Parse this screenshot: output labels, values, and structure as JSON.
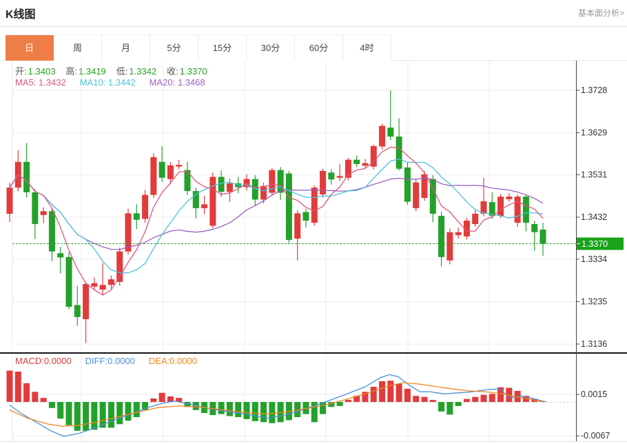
{
  "header": {
    "title": "K线图",
    "link": "基本面分析>"
  },
  "tabs": {
    "items": [
      "日",
      "周",
      "月",
      "5分",
      "15分",
      "30分",
      "60分",
      "4时"
    ],
    "active": 0
  },
  "quote": {
    "items": [
      {
        "key": "open",
        "label": "开:",
        "value": "1.3403"
      },
      {
        "key": "high",
        "label": "高:",
        "value": "1.3419"
      },
      {
        "key": "low",
        "label": "低:",
        "value": "1.3342"
      },
      {
        "key": "close",
        "label": "收:",
        "value": "1.3370"
      }
    ]
  },
  "ma": {
    "items": [
      {
        "key": "ma5",
        "label": "MA5:",
        "value": "1.3432",
        "color": "#e0557f"
      },
      {
        "key": "ma10",
        "label": "MA10:",
        "value": "1.3442",
        "color": "#4cc3dc"
      },
      {
        "key": "ma20",
        "label": "MA20:",
        "value": "1.3468",
        "color": "#9c5fc0"
      }
    ]
  },
  "macd_legend": {
    "items": [
      {
        "key": "macd",
        "label": "MACD:",
        "value": "0.0000",
        "color": "#e23b3b"
      },
      {
        "key": "diff",
        "label": "DIFF:",
        "value": "0.0000",
        "color": "#4a90d9"
      },
      {
        "key": "dea",
        "label": "DEA:",
        "value": "0.0000",
        "color": "#f0871e"
      }
    ]
  },
  "colors": {
    "up": "#e23b3b",
    "down": "#23a12a",
    "ma5": "#e0557f",
    "ma10": "#4cc3dc",
    "ma20": "#9c5fc0",
    "diff": "#4a90d9",
    "dea": "#f0871e",
    "price_line": "#2ba52b",
    "price_tag_bg": "#18a318",
    "value_green": "#21a21f",
    "zero_line": "#a6c9e8",
    "tab_active_bg": "#ee7e45",
    "grid": "#ededed",
    "axis": "#444444",
    "separator": "#151515"
  },
  "chart_data": {
    "type": "candlestick+macd",
    "main": {
      "y_axis_labels": [
        "1.3728",
        "1.3629",
        "1.3531",
        "1.3432",
        "1.3334",
        "1.3235",
        "1.3136"
      ],
      "current_price": 1.337,
      "current_price_label": "1.3370",
      "ma_periods": [
        5,
        10,
        20
      ],
      "candles": [
        [
          1.344,
          1.3512,
          1.3421,
          1.3501
        ],
        [
          1.3501,
          1.3588,
          1.3492,
          1.3561
        ],
        [
          1.3561,
          1.3605,
          1.3478,
          1.349
        ],
        [
          1.349,
          1.3498,
          1.3381,
          1.3416
        ],
        [
          1.3437,
          1.3455,
          1.3418,
          1.3446
        ],
        [
          1.3446,
          1.3452,
          1.333,
          1.3352
        ],
        [
          1.3348,
          1.3363,
          1.3301,
          1.3338
        ],
        [
          1.3339,
          1.335,
          1.3218,
          1.3223
        ],
        [
          1.3227,
          1.3272,
          1.3178,
          1.3199
        ],
        [
          1.3194,
          1.3281,
          1.3138,
          1.3276
        ],
        [
          1.327,
          1.3291,
          1.3261,
          1.3278
        ],
        [
          1.3263,
          1.3325,
          1.3251,
          1.3274
        ],
        [
          1.3274,
          1.3296,
          1.3265,
          1.3287
        ],
        [
          1.3281,
          1.3361,
          1.3272,
          1.3352
        ],
        [
          1.3352,
          1.3452,
          1.3345,
          1.3441
        ],
        [
          1.3441,
          1.3462,
          1.3404,
          1.3426
        ],
        [
          1.3428,
          1.3496,
          1.3419,
          1.3484
        ],
        [
          1.3484,
          1.3581,
          1.3477,
          1.3572
        ],
        [
          1.3561,
          1.3597,
          1.3514,
          1.3524
        ],
        [
          1.3521,
          1.3561,
          1.3509,
          1.3553
        ],
        [
          1.355,
          1.3566,
          1.3544,
          1.3554
        ],
        [
          1.3542,
          1.3561,
          1.3484,
          1.3493
        ],
        [
          1.3493,
          1.3501,
          1.3429,
          1.3453
        ],
        [
          1.3453,
          1.3482,
          1.3439,
          1.3462
        ],
        [
          1.3412,
          1.3536,
          1.3406,
          1.3526
        ],
        [
          1.3526,
          1.3541,
          1.3479,
          1.3491
        ],
        [
          1.3491,
          1.3522,
          1.3468,
          1.3511
        ],
        [
          1.3511,
          1.3526,
          1.3488,
          1.3502
        ],
        [
          1.3502,
          1.3532,
          1.3494,
          1.3521
        ],
        [
          1.3521,
          1.353,
          1.3458,
          1.3473
        ],
        [
          1.3473,
          1.3513,
          1.3464,
          1.3505
        ],
        [
          1.3489,
          1.3547,
          1.3482,
          1.3542
        ],
        [
          1.3542,
          1.3549,
          1.3472,
          1.3489
        ],
        [
          1.3534,
          1.354,
          1.3372,
          1.3379
        ],
        [
          1.3382,
          1.3448,
          1.3331,
          1.3441
        ],
        [
          1.3444,
          1.3452,
          1.3408,
          1.3424
        ],
        [
          1.3419,
          1.3506,
          1.3412,
          1.3501
        ],
        [
          1.3485,
          1.3545,
          1.3478,
          1.354
        ],
        [
          1.3536,
          1.3544,
          1.3508,
          1.352
        ],
        [
          1.3524,
          1.3556,
          1.3516,
          1.3528
        ],
        [
          1.3524,
          1.357,
          1.3518,
          1.3566
        ],
        [
          1.3566,
          1.3576,
          1.3549,
          1.3556
        ],
        [
          1.3552,
          1.3568,
          1.3546,
          1.3558
        ],
        [
          1.355,
          1.3601,
          1.3543,
          1.3598
        ],
        [
          1.3597,
          1.365,
          1.359,
          1.3645
        ],
        [
          1.3641,
          1.3728,
          1.3612,
          1.362
        ],
        [
          1.362,
          1.3663,
          1.3541,
          1.3545
        ],
        [
          1.3548,
          1.356,
          1.3461,
          1.3468
        ],
        [
          1.3453,
          1.352,
          1.3446,
          1.3513
        ],
        [
          1.3477,
          1.354,
          1.347,
          1.3532
        ],
        [
          1.3521,
          1.353,
          1.342,
          1.344
        ],
        [
          1.3435,
          1.3445,
          1.3317,
          1.3339
        ],
        [
          1.3331,
          1.3405,
          1.3322,
          1.3397
        ],
        [
          1.339,
          1.3408,
          1.3382,
          1.3397
        ],
        [
          1.3387,
          1.343,
          1.338,
          1.3424
        ],
        [
          1.3416,
          1.3448,
          1.341,
          1.344
        ],
        [
          1.344,
          1.3524,
          1.3434,
          1.3469
        ],
        [
          1.3467,
          1.349,
          1.3428,
          1.3435
        ],
        [
          1.3435,
          1.3486,
          1.343,
          1.348
        ],
        [
          1.3474,
          1.3488,
          1.3468,
          1.348
        ],
        [
          1.3419,
          1.3485,
          1.3409,
          1.348
        ],
        [
          1.348,
          1.3484,
          1.3399,
          1.3419
        ],
        [
          1.3416,
          1.3424,
          1.3354,
          1.3397
        ],
        [
          1.3403,
          1.3419,
          1.3342,
          1.337
        ]
      ]
    },
    "macd": {
      "y_axis_labels": [
        "0.0015",
        "-0.0067"
      ],
      "histogram": [
        0.0062,
        0.006,
        0.0037,
        0.002,
        0.0008,
        -0.0012,
        -0.0033,
        -0.0046,
        -0.0057,
        -0.0057,
        -0.0055,
        -0.0051,
        -0.0051,
        -0.0044,
        -0.0037,
        -0.003,
        -0.0016,
        0.0007,
        0.0018,
        0.0011,
        0.0008,
        -0.001,
        -0.0016,
        -0.0022,
        -0.0026,
        -0.0024,
        -0.0028,
        -0.003,
        -0.0034,
        -0.0038,
        -0.004,
        -0.0042,
        -0.004,
        -0.0036,
        -0.003,
        -0.0024,
        -0.004,
        -0.0024,
        -0.001,
        -0.0008,
        0.0004,
        0.0012,
        0.002,
        0.003,
        0.0041,
        0.0042,
        0.0036,
        0.0026,
        0.0012,
        0.001,
        0.0004,
        -0.0019,
        -0.0025,
        -0.0008,
        0.0006,
        0.001,
        0.0014,
        0.0016,
        0.0029,
        0.0028,
        0.0022,
        0.0012,
        0.0006,
        0.0001
      ],
      "diff_line": [
        [
          14,
          -0.0006
        ],
        [
          30,
          -0.0022
        ],
        [
          55,
          -0.0042
        ],
        [
          75,
          -0.0058
        ],
        [
          93,
          -0.0068
        ],
        [
          115,
          -0.0062
        ],
        [
          140,
          -0.005
        ],
        [
          165,
          -0.0036
        ],
        [
          190,
          -0.0024
        ],
        [
          215,
          -0.0011
        ],
        [
          235,
          -0.0003
        ],
        [
          253,
          0.0002
        ],
        [
          275,
          -0.0004
        ],
        [
          300,
          -0.0012
        ],
        [
          330,
          -0.0019
        ],
        [
          360,
          -0.0025
        ],
        [
          390,
          -0.0032
        ],
        [
          420,
          -0.0024
        ],
        [
          445,
          -0.0013
        ],
        [
          470,
          -0.0001
        ],
        [
          500,
          0.0014
        ],
        [
          530,
          0.003
        ],
        [
          552,
          0.0048
        ],
        [
          565,
          0.0054
        ],
        [
          578,
          0.005
        ],
        [
          595,
          0.0032
        ],
        [
          610,
          0.002
        ],
        [
          625,
          0.002
        ],
        [
          645,
          0.0016
        ],
        [
          665,
          0.0018
        ],
        [
          685,
          0.002
        ],
        [
          705,
          0.0024
        ],
        [
          725,
          0.0026
        ],
        [
          740,
          0.0008
        ],
        [
          755,
          0.0012
        ],
        [
          770,
          0.0008
        ],
        [
          790,
          0.0001
        ]
      ],
      "dea_line": [
        [
          14,
          -0.0016
        ],
        [
          40,
          -0.0032
        ],
        [
          70,
          -0.0044
        ],
        [
          90,
          -0.0048
        ],
        [
          115,
          -0.0046
        ],
        [
          140,
          -0.004
        ],
        [
          170,
          -0.003
        ],
        [
          200,
          -0.002
        ],
        [
          230,
          -0.0011
        ],
        [
          260,
          -0.0008
        ],
        [
          290,
          -0.001
        ],
        [
          320,
          -0.0015
        ],
        [
          350,
          -0.002
        ],
        [
          385,
          -0.0024
        ],
        [
          415,
          -0.002
        ],
        [
          445,
          -0.0013
        ],
        [
          475,
          -0.0005
        ],
        [
          505,
          0.0006
        ],
        [
          535,
          0.0018
        ],
        [
          565,
          0.0032
        ],
        [
          585,
          0.0038
        ],
        [
          605,
          0.0036
        ],
        [
          630,
          0.0031
        ],
        [
          655,
          0.0026
        ],
        [
          680,
          0.0022
        ],
        [
          705,
          0.002
        ],
        [
          730,
          0.0016
        ],
        [
          750,
          0.001
        ],
        [
          770,
          0.0005
        ],
        [
          790,
          0.0
        ]
      ]
    }
  }
}
